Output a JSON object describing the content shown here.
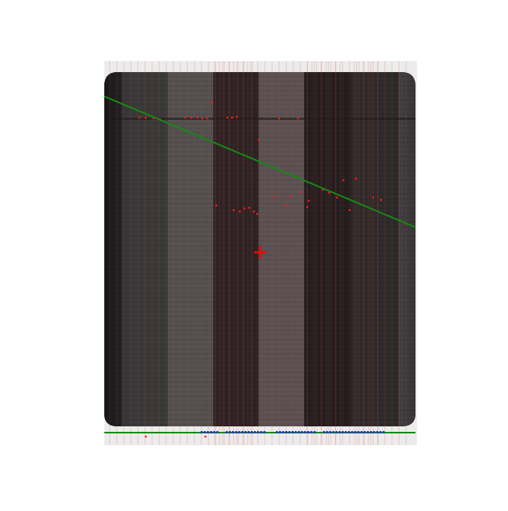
{
  "image": {
    "kind": "solar cell inspection image with vertical stripe bands, red defect markers, green fitted lines and a red center crosshair",
    "colors": {
      "background": "#ffffff",
      "frame": "#ececec",
      "cell_outer": "#2a2a2a",
      "band_dark": "#231f20",
      "band_mid": "#3a3a3a",
      "band_light": "#555252",
      "band_pinkish": "#5c5354",
      "red_lines": "#e23a3a",
      "defect_points": "#ff1a1a",
      "fit_line": "#138a13",
      "crosshair": "#ff0000",
      "blue_ticks": "#2233cc"
    },
    "icons": [
      "crosshair-icon"
    ]
  }
}
